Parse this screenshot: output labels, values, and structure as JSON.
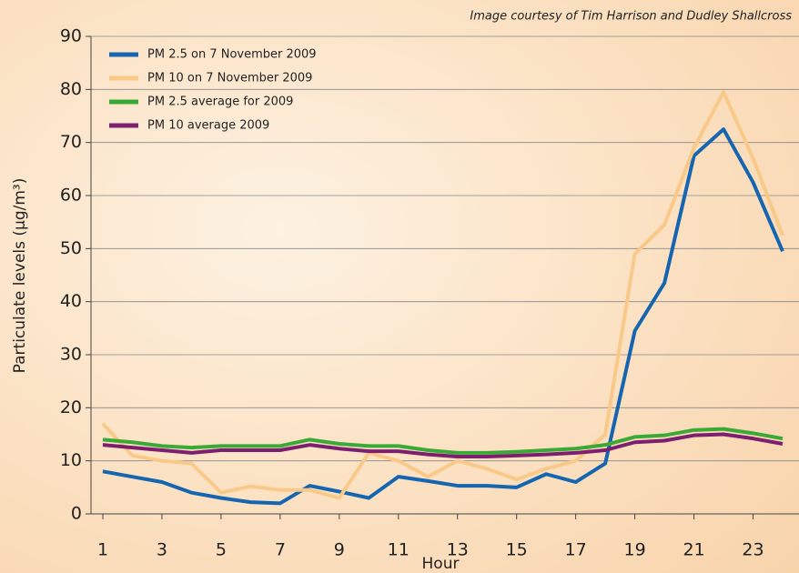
{
  "chart_data": {
    "type": "line",
    "credit": "Image courtesy of Tim Harrison and Dudley Shallcross",
    "x_label": "Hour",
    "y_label": "Particulate levels (µg/m³)",
    "x": [
      1,
      2,
      3,
      4,
      5,
      6,
      7,
      8,
      9,
      10,
      11,
      12,
      13,
      14,
      15,
      16,
      17,
      18,
      19,
      20,
      21,
      22,
      23,
      24
    ],
    "series": [
      {
        "name": "PM 2.5 on 7 November 2009",
        "color": "#1565b0",
        "values": [
          8,
          7,
          6,
          4,
          3,
          2.2,
          2,
          5.3,
          4.2,
          3,
          7,
          6.2,
          5.3,
          5.3,
          5,
          7.5,
          6,
          9.5,
          34.5,
          43.5,
          67.5,
          72.5,
          62.5,
          49.5
        ]
      },
      {
        "name": "PM 10 on 7 November 2009",
        "color": "#f9c98a",
        "values": [
          17,
          11,
          10,
          9.5,
          4,
          5.2,
          4.5,
          4.5,
          3,
          11.5,
          10,
          7,
          10,
          8.5,
          6.5,
          8.5,
          10,
          15,
          49,
          54.5,
          69,
          79.5,
          67,
          52.5
        ]
      },
      {
        "name": "PM 2.5 average for 2009",
        "color": "#3aa935",
        "values": [
          14,
          13.5,
          12.8,
          12.5,
          12.8,
          12.8,
          12.8,
          14,
          13.2,
          12.8,
          12.8,
          12,
          11.5,
          11.5,
          11.7,
          12,
          12.3,
          13,
          14.5,
          14.8,
          15.8,
          16,
          15.2,
          14.2
        ]
      },
      {
        "name": "PM 10 average 2009",
        "color": "#7b1f6e",
        "values": [
          13,
          12.5,
          12,
          11.5,
          12,
          12,
          12,
          13,
          12.3,
          11.8,
          11.8,
          11.2,
          10.8,
          10.8,
          11,
          11.2,
          11.5,
          12,
          13.5,
          13.8,
          14.8,
          15,
          14.2,
          13.2
        ]
      }
    ],
    "xlim": [
      0.6,
      24
    ],
    "xticks": [
      1,
      3,
      5,
      7,
      9,
      11,
      13,
      15,
      17,
      19,
      21,
      23
    ],
    "ylim": [
      0,
      90
    ],
    "yticks": [
      0,
      10,
      20,
      30,
      40,
      50,
      60,
      70,
      80,
      90
    ],
    "grid": true,
    "legend": "top-left"
  }
}
